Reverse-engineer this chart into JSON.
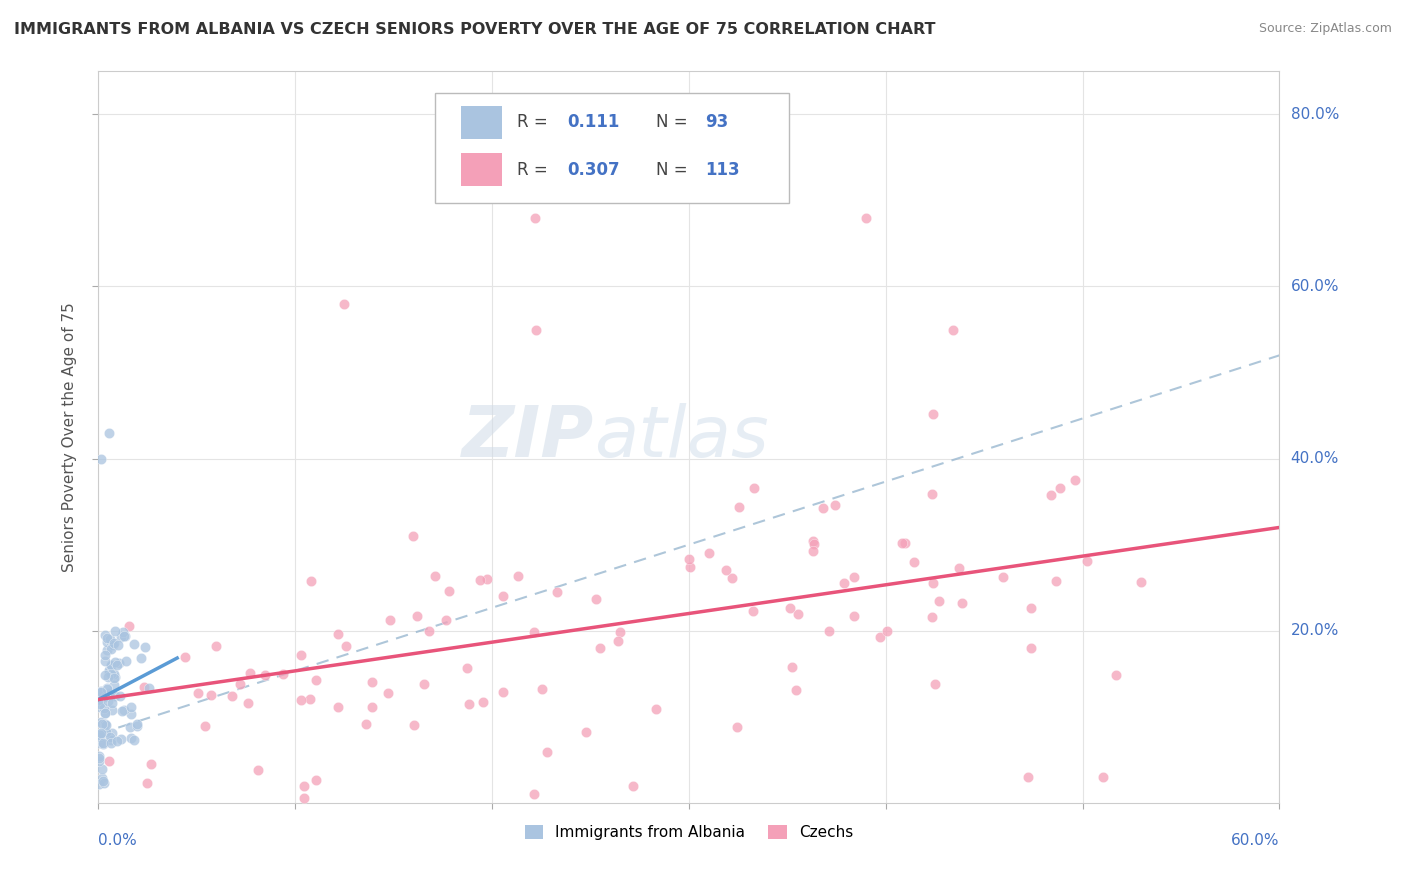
{
  "title": "IMMIGRANTS FROM ALBANIA VS CZECH SENIORS POVERTY OVER THE AGE OF 75 CORRELATION CHART",
  "source": "Source: ZipAtlas.com",
  "ylabel": "Seniors Poverty Over the Age of 75",
  "xlim": [
    0.0,
    0.6
  ],
  "ylim": [
    0.0,
    0.85
  ],
  "legend1_R": "0.111",
  "legend1_N": "93",
  "legend2_R": "0.307",
  "legend2_N": "113",
  "color_albania": "#aac4e0",
  "color_czechs": "#f4a0b8",
  "color_line_albania": "#5b9bd5",
  "color_line_czechs": "#e8547a",
  "color_dashed": "#9ab8d0",
  "watermark_zip": "ZIP",
  "watermark_atlas": "atlas",
  "ytick_color": "#4472c4",
  "xtick_color": "#4472c4"
}
